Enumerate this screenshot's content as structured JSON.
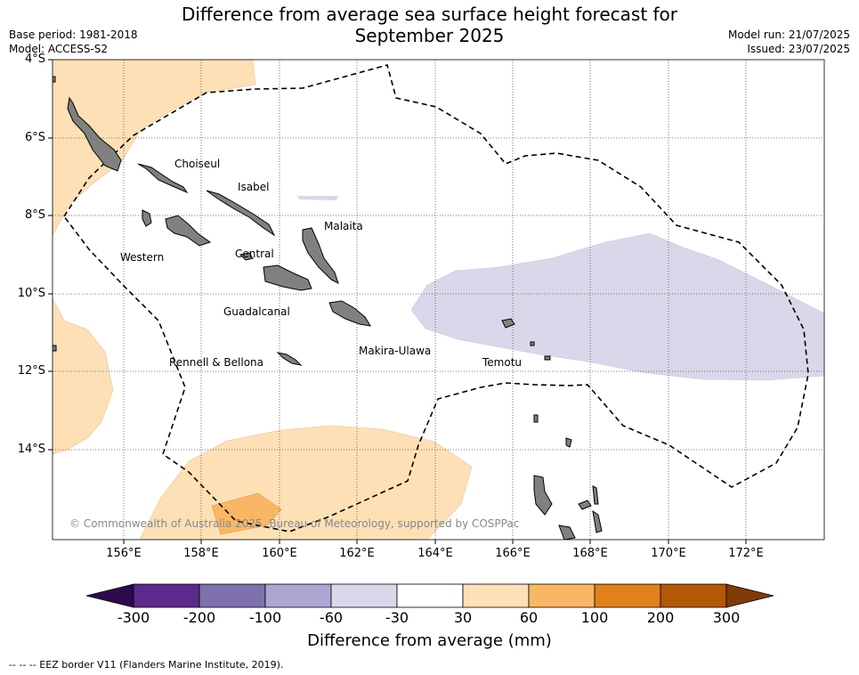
{
  "header": {
    "title_line1": "Difference from average sea surface height forecast for",
    "title_line2": "September 2025",
    "base_period": "Base period: 1981-2018",
    "model": "Model: ACCESS-S2",
    "model_run": "Model run: 21/07/2025",
    "issued": "Issued: 23/07/2025"
  },
  "map": {
    "lat_labels": [
      "4°S",
      "6°S",
      "8°S",
      "10°S",
      "12°S",
      "14°S"
    ],
    "lon_labels": [
      "156°E",
      "158°E",
      "160°E",
      "162°E",
      "164°E",
      "166°E",
      "168°E",
      "170°E",
      "172°E"
    ],
    "grid": true,
    "places": [
      "Choiseul",
      "Isabel",
      "Malaita",
      "Western",
      "Central",
      "Guadalcanal",
      "Makira-Ulawa",
      "Rennell & Bellona",
      "Temotu"
    ],
    "copyright": "© Commonwealth of Australia 2025, Bureau of Meteorology, supported by COSPPac",
    "land_color": "#808080",
    "eez_line_style": "dashed black"
  },
  "colorbar": {
    "label": "Difference from average (mm)",
    "ticks": [
      "-300",
      "-200",
      "-100",
      "-60",
      "-30",
      "30",
      "60",
      "100",
      "200",
      "300"
    ],
    "colors": [
      "#2d0a4e",
      "#5b2a8a",
      "#7f70ae",
      "#aea6d2",
      "#d8d8ea",
      "#ffffff",
      "#fde0b6",
      "#f9b765",
      "#e0811c",
      "#b35806",
      "#7f3b08"
    ]
  },
  "footer": {
    "eez_note": "--  --  -- EEZ border V11 (Flanders Marine Institute, 2019)."
  }
}
